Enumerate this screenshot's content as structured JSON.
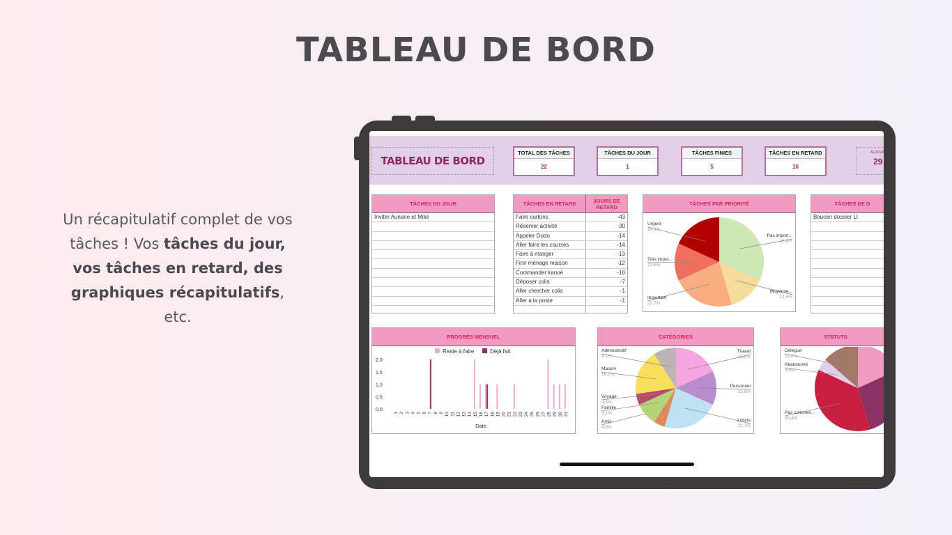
{
  "page": {
    "title": "TABLEAU DE BORD",
    "blurb": [
      {
        "t": "Un récapitulatif complet de vos tâches ! Vos ",
        "b": false
      },
      {
        "t": "tâches du jour, vos tâches en retard, des graphiques récapitulatifs",
        "b": true
      },
      {
        "t": ", etc.",
        "b": false
      }
    ]
  },
  "dashboard": {
    "title": "TABLEAU DE BORD",
    "kpis": [
      {
        "label": "TOTAL DES TÂCHES",
        "value": "22"
      },
      {
        "label": "TÂCHES  DU JOUR",
        "value": "1"
      },
      {
        "label": "TÂCHES FINIES",
        "value": "5"
      },
      {
        "label": "TÂCHES EN RETARD",
        "value": "10"
      }
    ],
    "today": {
      "label": "AUJOURD'",
      "value": "29"
    },
    "tasks_today": {
      "header": "TÂCHES DU JOUR",
      "items": [
        "Inviter Auriane et Mike"
      ]
    },
    "tasks_late": {
      "header": "TÂCHES EN RETARD",
      "days_header": "JOURS DE RETARD",
      "items": [
        {
          "task": "Faire cartons",
          "days": "-43"
        },
        {
          "task": "Réserver activité",
          "days": "-30"
        },
        {
          "task": "Appeler Dodo",
          "days": "-14"
        },
        {
          "task": "Aller faire les courses",
          "days": "-14"
        },
        {
          "task": "Faire à manger",
          "days": "-13"
        },
        {
          "task": "Finir ménage maison",
          "days": "-12"
        },
        {
          "task": "Commander kanoé",
          "days": "-10"
        },
        {
          "task": "Déposer colis",
          "days": "-7"
        },
        {
          "task": "Aller chercher colis",
          "days": "-1"
        },
        {
          "task": "Aller a la poste",
          "days": "-1"
        }
      ]
    },
    "tasks_deadline": {
      "header": "TÂCHES DE D",
      "items": [
        "Boucler dossier LI"
      ]
    }
  },
  "chart_data": [
    {
      "type": "pie",
      "title": "TÂCHES PAR PRIORITÉ",
      "slices": [
        {
          "label": "Pas import...",
          "pct": "31,8%",
          "value": 31.8,
          "color": "#cde8b4"
        },
        {
          "label": "Moyenne...",
          "pct": "13,6%",
          "value": 13.6,
          "color": "#f5dc9a"
        },
        {
          "label": "Important",
          "pct": "22,7%",
          "value": 22.7,
          "color": "#f9ad80"
        },
        {
          "label": "Très impor...",
          "pct": "13,6%",
          "value": 13.6,
          "color": "#ef6e5e"
        },
        {
          "label": "Urgent",
          "pct": "18,2%",
          "value": 18.2,
          "color": "#b30000"
        }
      ]
    },
    {
      "type": "bar",
      "title": "PROGRÈS MENSUEL",
      "xlabel": "Date",
      "ylim": [
        0,
        2
      ],
      "yticks": [
        "0,0",
        "0,5",
        "1,0",
        "1,5",
        "2,0"
      ],
      "categories": [
        1,
        2,
        3,
        4,
        5,
        6,
        7,
        8,
        9,
        10,
        11,
        12,
        13,
        14,
        15,
        16,
        17,
        18,
        19,
        20,
        21,
        22,
        23,
        24,
        25,
        26,
        27,
        28,
        29,
        30,
        31
      ],
      "legend_position": "top",
      "series": [
        {
          "name": "Reste à faire",
          "color": "#f7a9c9",
          "values": [
            0,
            0,
            0,
            0,
            0,
            0,
            0,
            0,
            0,
            0,
            0,
            0,
            0,
            0,
            2,
            1,
            1,
            0,
            1,
            0,
            0,
            1,
            0,
            0,
            0,
            0,
            0,
            2,
            1,
            1,
            1
          ]
        },
        {
          "name": "Déjà fait",
          "color": "#9b2d6b",
          "values": [
            0,
            0,
            0,
            0,
            0,
            0,
            2,
            0,
            0,
            0,
            0,
            0,
            0,
            0,
            0,
            0,
            1,
            0,
            0,
            0,
            0,
            0,
            0,
            0,
            0,
            0,
            0,
            0,
            0,
            0,
            0
          ]
        }
      ]
    },
    {
      "type": "pie",
      "title": "CATÉGORIES",
      "slices": [
        {
          "label": "Travail",
          "pct": "18,2%",
          "value": 18.2,
          "color": "#f5a6de"
        },
        {
          "label": "Personnel",
          "pct": "13,6%",
          "value": 13.6,
          "color": "#b98ccc"
        },
        {
          "label": "Loisirs",
          "pct": "22,7%",
          "value": 22.7,
          "color": "#bfe1f5"
        },
        {
          "label": "Amis",
          "pct": "4,5%",
          "value": 4.5,
          "color": "#e08a5a"
        },
        {
          "label": "Famille",
          "pct": "9,1%",
          "value": 9.1,
          "color": "#b3d57a"
        },
        {
          "label": "Voyage",
          "pct": "4,5%",
          "value": 4.5,
          "color": "#b84a6a"
        },
        {
          "label": "Maison",
          "pct": "18,2%",
          "value": 18.2,
          "color": "#f9df5b"
        },
        {
          "label": "Administratif",
          "pct": "9,1%",
          "value": 9.1,
          "color": "#bdb5b5"
        }
      ]
    },
    {
      "type": "pie",
      "title": "STATUTS",
      "slices": [
        {
          "label": "",
          "pct": "",
          "value": 18.2,
          "color": "#f09bbf"
        },
        {
          "label": "",
          "pct": "",
          "value": 27.3,
          "color": "#8c3163"
        },
        {
          "label": "Pas commen...",
          "pct": "36,4%",
          "value": 36.4,
          "color": "#c81e40"
        },
        {
          "label": "Abandonné",
          "pct": "4,5%",
          "value": 4.5,
          "color": "#e2cfe7"
        },
        {
          "label": "Délégué",
          "pct": "13,6%",
          "value": 13.6,
          "color": "#a47868"
        }
      ]
    }
  ]
}
